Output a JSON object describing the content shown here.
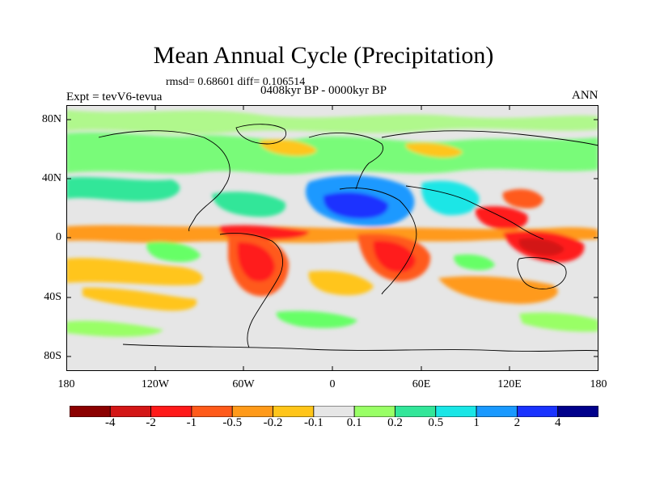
{
  "title": "Mean Annual Cycle (Precipitation)",
  "stats": "rmsd= 0.68601 diff= 0.106514",
  "experiment": "Expt = tevV6-tevua",
  "period": "0408kyr BP - 0000kyr BP",
  "season": "ANN",
  "lat_labels": [
    "80N",
    "40N",
    "0",
    "40S",
    "80S"
  ],
  "lon_labels": [
    "180",
    "120W",
    "60W",
    "0",
    "60E",
    "120E",
    "180"
  ],
  "colorbar": {
    "colors": [
      "#8b0000",
      "#d31616",
      "#ff1a1a",
      "#ff5a1a",
      "#ff9a1a",
      "#ffc51a",
      "#e6e6e6",
      "#99ff66",
      "#33e699",
      "#1ae6e6",
      "#1a99ff",
      "#1a33ff",
      "#00008b"
    ],
    "labels": [
      "-4",
      "-2",
      "-1",
      "-0.5",
      "-0.2",
      "-0.1",
      "0.1",
      "0.2",
      "0.5",
      "1",
      "2",
      "4"
    ]
  },
  "chart_data": {
    "type": "heatmap",
    "title": "Mean Annual Cycle (Precipitation)",
    "projection": "cylindrical equidistant",
    "lon_range": [
      -180,
      180
    ],
    "lat_range": [
      -90,
      90
    ],
    "contour_levels": [
      -4,
      -2,
      -1,
      -0.5,
      -0.2,
      -0.1,
      0.1,
      0.2,
      0.5,
      1,
      2,
      4
    ]
  }
}
